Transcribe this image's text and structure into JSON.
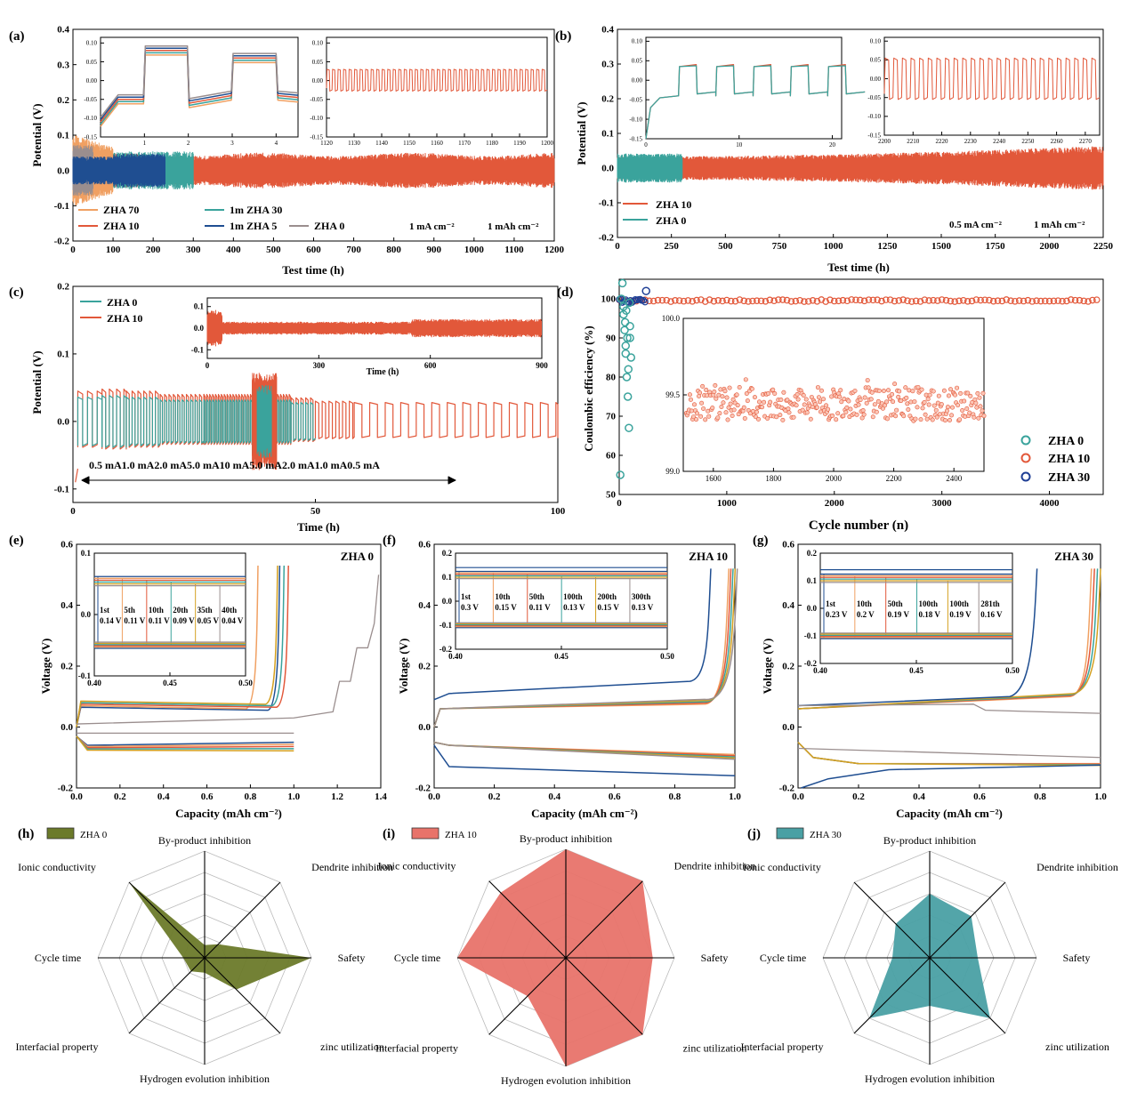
{
  "colors": {
    "zha70": "#f0a062",
    "zha10": "#e2583a",
    "zha30": "#3aa39c",
    "zha5": "#1f4e91",
    "zha0": "#9a8e8e",
    "zha0_b": "#3aa39c",
    "radar_h": "#6b7a2a",
    "radar_i": "#e8736a",
    "radar_j": "#4aa0a4",
    "c_ce_30": "#1f3f95"
  },
  "panels": {
    "a": {
      "label": "(a)",
      "xlabel": "Test time (h)",
      "ylabel": "Potential (V)",
      "xticks": [
        "0",
        "100",
        "200",
        "300",
        "400",
        "500",
        "600",
        "700",
        "800",
        "900",
        "1000",
        "1100",
        "1200"
      ],
      "yticks": [
        "-0.2",
        "-0.1",
        "0.0",
        "0.1",
        "0.2",
        "0.3",
        "0.4"
      ],
      "legend": [
        "ZHA 70",
        "1m ZHA 30",
        "ZHA 10",
        "1m ZHA 5",
        "ZHA 0"
      ],
      "condition_1": "1 mA cm⁻²",
      "condition_2": "1 mAh cm⁻²",
      "inset1_xticks": [
        "1",
        "2",
        "3",
        "4"
      ],
      "inset1_yticks": [
        "0.10",
        "0.05",
        "0.00",
        "-0.05",
        "-0.10",
        "-0.15"
      ],
      "inset2_xticks": [
        "1120",
        "1130",
        "1140",
        "1150",
        "1160",
        "1170",
        "1180",
        "1190",
        "1200"
      ],
      "inset2_yticks": [
        "0.10",
        "0.05",
        "0.00",
        "-0.05",
        "-0.10",
        "-0.15"
      ]
    },
    "b": {
      "label": "(b)",
      "xlabel": "Test time (h)",
      "ylabel": "Potential (V)",
      "xticks": [
        "0",
        "250",
        "500",
        "750",
        "1000",
        "1250",
        "1500",
        "1750",
        "2000",
        "2250"
      ],
      "yticks": [
        "-0.2",
        "-0.1",
        "0.0",
        "0.1",
        "0.2",
        "0.3",
        "0.4"
      ],
      "legend": [
        "ZHA 10",
        "ZHA 0"
      ],
      "condition_1": "0.5 mA cm⁻²",
      "condition_2": "1 mAh cm⁻²",
      "inset1_xticks": [
        "0",
        "10",
        "20"
      ],
      "inset1_yticks": [
        "0.10",
        "0.05",
        "0.00",
        "-0.05",
        "-0.10",
        "-0.15"
      ],
      "inset2_xticks": [
        "2200",
        "2210",
        "2220",
        "2230",
        "2240",
        "2250",
        "2260",
        "2270"
      ],
      "inset2_yticks": [
        "0.10",
        "0.05",
        "0.00",
        "-0.05",
        "-0.10",
        "-0.15"
      ]
    },
    "c": {
      "label": "(c)",
      "xlabel": "Time (h)",
      "ylabel": "Potential (V)",
      "xticks": [
        "0",
        "50",
        "100"
      ],
      "yticks": [
        "-0.1",
        "0.0",
        "0.1",
        "0.2"
      ],
      "legend": [
        "ZHA 0",
        "ZHA 10"
      ],
      "rates": "0.5 mA1.0 mA2.0 mA5.0 mA10 mA5.0 mA2.0 mA1.0 mA0.5 mA",
      "inset_xticks": [
        "0",
        "300",
        "600",
        "900"
      ],
      "inset_xlabel": "Time (h)",
      "inset_yticks": [
        "0.1",
        "0.0",
        "-0.1"
      ]
    },
    "d": {
      "label": "(d)",
      "xlabel": "Cycle number (n)",
      "ylabel": "Coulombic efficiency (%)",
      "xticks": [
        "0",
        "1000",
        "2000",
        "3000",
        "4000"
      ],
      "yticks": [
        "50",
        "60",
        "70",
        "80",
        "90",
        "100"
      ],
      "legend": [
        "ZHA 0",
        "ZHA 10",
        "ZHA 30"
      ],
      "inset_xticks": [
        "1600",
        "1800",
        "2000",
        "2200",
        "2400"
      ],
      "inset_yticks": [
        "100.0",
        "99.5",
        "99.0"
      ]
    },
    "e": {
      "label": "(e)",
      "title": "ZHA 0",
      "xlabel": "Capacity (mAh cm⁻²)",
      "ylabel": "Voltage (V)",
      "xticks": [
        "0.0",
        "0.2",
        "0.4",
        "0.6",
        "0.8",
        "1.0",
        "1.2",
        "1.4"
      ],
      "yticks": [
        "-0.2",
        "0.0",
        "0.2",
        "0.4",
        "0.6"
      ],
      "inset_xticks": [
        "0.40",
        "0.45",
        "0.50"
      ],
      "inset_yticks": [
        "0.1",
        "0.0",
        "-0.1"
      ],
      "cycles": [
        "1st",
        "5th",
        "10th",
        "20th",
        "35th",
        "40th"
      ],
      "volts": [
        "0.14 V",
        "0.11 V",
        "0.11 V",
        "0.09 V",
        "0.05 V",
        "0.04 V"
      ]
    },
    "f": {
      "label": "(f)",
      "title": "ZHA 10",
      "xlabel": "Capacity (mAh cm⁻²)",
      "ylabel": "Voltage (V)",
      "xticks": [
        "0.0",
        "0.2",
        "0.4",
        "0.6",
        "0.8",
        "1.0"
      ],
      "yticks": [
        "-0.2",
        "0.0",
        "0.2",
        "0.4",
        "0.6"
      ],
      "inset_xticks": [
        "0.40",
        "0.45",
        "0.50"
      ],
      "inset_yticks": [
        "0.2",
        "0.1",
        "0.0",
        "-0.1",
        "-0.2"
      ],
      "cycles": [
        "1st",
        "10th",
        "50th",
        "100th",
        "200th",
        "300th"
      ],
      "volts": [
        "0.3 V",
        "0.15 V",
        "0.11 V",
        "0.13 V",
        "0.15 V",
        "0.13 V"
      ]
    },
    "g": {
      "label": "(g)",
      "title": "ZHA 30",
      "xlabel": "Capacity (mAh cm⁻²)",
      "ylabel": "Voltage (V)",
      "xticks": [
        "0.0",
        "0.2",
        "0.4",
        "0.6",
        "0.8",
        "1.0"
      ],
      "yticks": [
        "-0.2",
        "0.0",
        "0.2",
        "0.4",
        "0.6"
      ],
      "inset_xticks": [
        "0.40",
        "0.45",
        "0.50"
      ],
      "inset_yticks": [
        "0.2",
        "0.1",
        "0.0",
        "-0.1",
        "-0.2"
      ],
      "cycles": [
        "1st",
        "10th",
        "50th",
        "100th",
        "100th",
        "281th"
      ],
      "volts": [
        "0.23 V",
        "0.2 V",
        "0.19 V",
        "0.18 V",
        "0.19 V",
        "0.16 V"
      ]
    },
    "radar_axes": [
      "By-product inhibition",
      "Dendrite inhibition",
      "Safety",
      "zinc utilization",
      "Hydrogen evolution inhibition",
      "Interfacial property",
      "Cycle time",
      "Ionic conductivity"
    ],
    "h": {
      "label": "(h)",
      "legend": "ZHA 0"
    },
    "i": {
      "label": "(i)",
      "legend": "ZHA 10"
    },
    "j": {
      "label": "(j)",
      "legend": "ZHA 30"
    }
  },
  "chart_data": [
    {
      "type": "line",
      "panel": "a",
      "xlim": [
        0,
        1200
      ],
      "ylim": [
        -0.2,
        0.4
      ],
      "series": [
        {
          "name": "ZHA 70",
          "x_end": 100,
          "amplitude": 0.08
        },
        {
          "name": "1m ZHA 30",
          "x_end": 300,
          "amplitude": 0.05
        },
        {
          "name": "ZHA 10",
          "x_end": 1200,
          "amplitude": 0.04
        },
        {
          "name": "1m ZHA 5",
          "x_end": 230,
          "amplitude": 0.04
        },
        {
          "name": "ZHA 0",
          "x_end": 50,
          "amplitude": 0.06
        }
      ]
    },
    {
      "type": "line",
      "panel": "b",
      "xlim": [
        0,
        2250
      ],
      "ylim": [
        -0.2,
        0.4
      ],
      "series": [
        {
          "name": "ZHA 10",
          "x_end": 2250,
          "amplitude_start": 0.03,
          "amplitude_end": 0.055
        },
        {
          "name": "ZHA 0",
          "x_end": 300,
          "amplitude": 0.035
        }
      ]
    },
    {
      "type": "line",
      "panel": "c",
      "xlim": [
        0,
        100
      ],
      "ylim": [
        -0.12,
        0.2
      ],
      "segments_current_mA": [
        0.5,
        1.0,
        2.0,
        5.0,
        10,
        5.0,
        2.0,
        1.0,
        0.5
      ],
      "series": [
        {
          "name": "ZHA 0",
          "x_end": 50
        },
        {
          "name": "ZHA 10",
          "x_end": 100
        }
      ]
    },
    {
      "type": "scatter",
      "panel": "d",
      "xlim": [
        0,
        4500
      ],
      "ylim": [
        50,
        105
      ],
      "series": [
        {
          "name": "ZHA 0",
          "x": [
            10,
            20,
            30,
            40,
            50,
            60,
            70,
            80,
            90,
            100,
            110
          ],
          "y": [
            55,
            100,
            104,
            96,
            92,
            88,
            80,
            75,
            67,
            90,
            85
          ]
        },
        {
          "name": "ZHA 10",
          "x_range": [
            0,
            4500
          ],
          "y_mean": 99.4
        },
        {
          "name": "ZHA 30",
          "x_range": [
            0,
            250
          ],
          "y_mean": 99.6
        }
      ]
    },
    {
      "type": "radar",
      "panel": "h",
      "series": "ZHA 0",
      "axes": [
        "By-product inhibition",
        "Dendrite inhibition",
        "Safety",
        "zinc utilization",
        "Hydrogen evolution inhibition",
        "Interfacial property",
        "Cycle time",
        "Ionic conductivity"
      ],
      "values": [
        0.12,
        0.18,
        1.0,
        0.42,
        0.14,
        0.18,
        0.2,
        1.0
      ]
    },
    {
      "type": "radar",
      "panel": "i",
      "series": "ZHA 10",
      "axes": [
        "By-product inhibition",
        "Dendrite inhibition",
        "Safety",
        "zinc utilization",
        "Hydrogen evolution inhibition",
        "Interfacial property",
        "Cycle time",
        "Ionic conductivity"
      ],
      "values": [
        1.0,
        1.0,
        0.8,
        1.0,
        1.0,
        0.5,
        1.0,
        0.85
      ]
    },
    {
      "type": "radar",
      "panel": "j",
      "series": "ZHA 30",
      "axes": [
        "By-product inhibition",
        "Dendrite inhibition",
        "Safety",
        "zinc utilization",
        "Hydrogen evolution inhibition",
        "Interfacial property",
        "Cycle time",
        "Ionic conductivity"
      ],
      "values": [
        0.6,
        0.55,
        0.45,
        0.8,
        0.45,
        0.8,
        0.35,
        0.45
      ]
    }
  ]
}
